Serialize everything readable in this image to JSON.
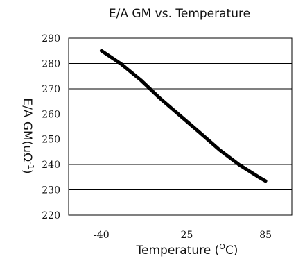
{
  "chart_data": {
    "type": "line",
    "title": "E/A GM vs. Temperature",
    "xlabel_prefix": "Temperature (",
    "xlabel_sup": "O",
    "xlabel_suffix": "C)",
    "ylabel_prefix": "E/A GM(uΩ",
    "ylabel_sup": "-1",
    "ylabel_suffix": ")",
    "x_ticks": [
      -40,
      25,
      85
    ],
    "xlim": [
      -65,
      105
    ],
    "y_ticks": [
      220,
      230,
      240,
      250,
      260,
      270,
      280,
      290
    ],
    "ylim": [
      220,
      290
    ],
    "grid": "horizontal",
    "series": [
      {
        "color": "#000000",
        "x": [
          -40,
          -25,
          -10,
          5,
          20,
          35,
          50,
          65,
          80,
          85
        ],
        "y": [
          285.0,
          279.8,
          273.4,
          266.0,
          259.3,
          252.6,
          245.8,
          239.9,
          235.0,
          233.5
        ]
      }
    ]
  }
}
